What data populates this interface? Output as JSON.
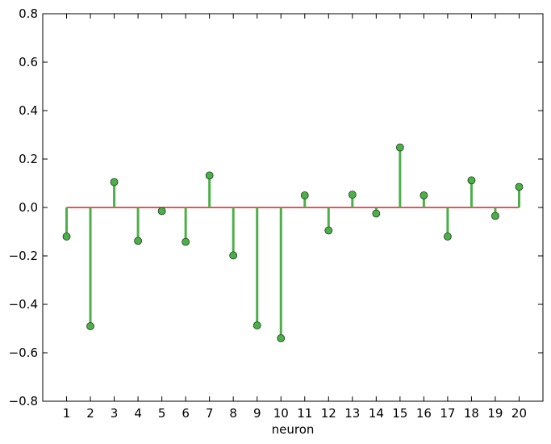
{
  "chart_data": {
    "type": "stem",
    "xlabel": "neuron",
    "ylabel": "",
    "title": "",
    "x": [
      1,
      2,
      3,
      4,
      5,
      6,
      7,
      8,
      9,
      10,
      11,
      12,
      13,
      14,
      15,
      16,
      17,
      18,
      19,
      20
    ],
    "values": [
      -0.12,
      -0.49,
      0.105,
      -0.138,
      -0.015,
      -0.142,
      0.132,
      -0.198,
      -0.487,
      -0.54,
      0.05,
      -0.095,
      0.053,
      -0.025,
      0.248,
      0.05,
      -0.12,
      0.112,
      -0.035,
      0.085
    ],
    "xlim": [
      0,
      21
    ],
    "ylim": [
      -0.8,
      0.8
    ],
    "xticks": [
      "1",
      "2",
      "3",
      "4",
      "5",
      "6",
      "7",
      "8",
      "9",
      "10",
      "11",
      "12",
      "13",
      "14",
      "15",
      "16",
      "17",
      "18",
      "19",
      "20"
    ],
    "yticks": [
      "−0.8",
      "−0.6",
      "−0.4",
      "−0.2",
      "0.0",
      "0.2",
      "0.4",
      "0.6",
      "0.8"
    ],
    "grid": false,
    "colors": {
      "stem": "#4daf4a",
      "marker": "#4daf4a",
      "marker_edge": "#1a3d1a",
      "baseline": "#e41a1c"
    }
  }
}
